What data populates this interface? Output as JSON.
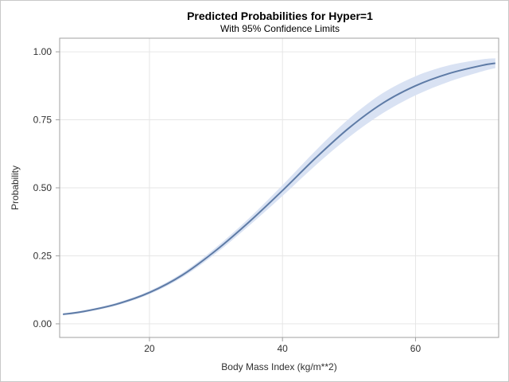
{
  "chart_data": {
    "type": "line",
    "title": "Predicted Probabilities for Hyper=1",
    "subtitle": "With 95% Confidence Limits",
    "xlabel": "Body Mass Index (kg/m**2)",
    "ylabel": "Probability",
    "xlim": [
      6.5,
      72.5
    ],
    "ylim": [
      -0.05,
      1.05
    ],
    "xticks": [
      20,
      40,
      60
    ],
    "xtick_labels": [
      "20",
      "40",
      "60"
    ],
    "yticks": [
      0.0,
      0.25,
      0.5,
      0.75,
      1.0
    ],
    "ytick_labels": [
      "0.00",
      "0.25",
      "0.50",
      "0.75",
      "1.00"
    ],
    "grid": true,
    "series": [
      {
        "name": "Predicted",
        "x": [
          7,
          10,
          15,
          20,
          25,
          30,
          35,
          40,
          45,
          50,
          55,
          60,
          65,
          70,
          72
        ],
        "y": [
          0.035,
          0.045,
          0.072,
          0.115,
          0.18,
          0.27,
          0.375,
          0.49,
          0.61,
          0.72,
          0.81,
          0.875,
          0.92,
          0.95,
          0.958
        ],
        "lower": [
          0.031,
          0.041,
          0.067,
          0.109,
          0.172,
          0.259,
          0.361,
          0.47,
          0.583,
          0.686,
          0.773,
          0.84,
          0.89,
          0.928,
          0.94
        ],
        "upper": [
          0.039,
          0.049,
          0.077,
          0.121,
          0.188,
          0.281,
          0.389,
          0.51,
          0.637,
          0.754,
          0.847,
          0.91,
          0.95,
          0.972,
          0.976
        ]
      }
    ],
    "colors": {
      "line": "#5e7ba6",
      "band": "#d9e2f3",
      "grid": "#e6e6e6",
      "axis": "#a0a0a0"
    }
  }
}
